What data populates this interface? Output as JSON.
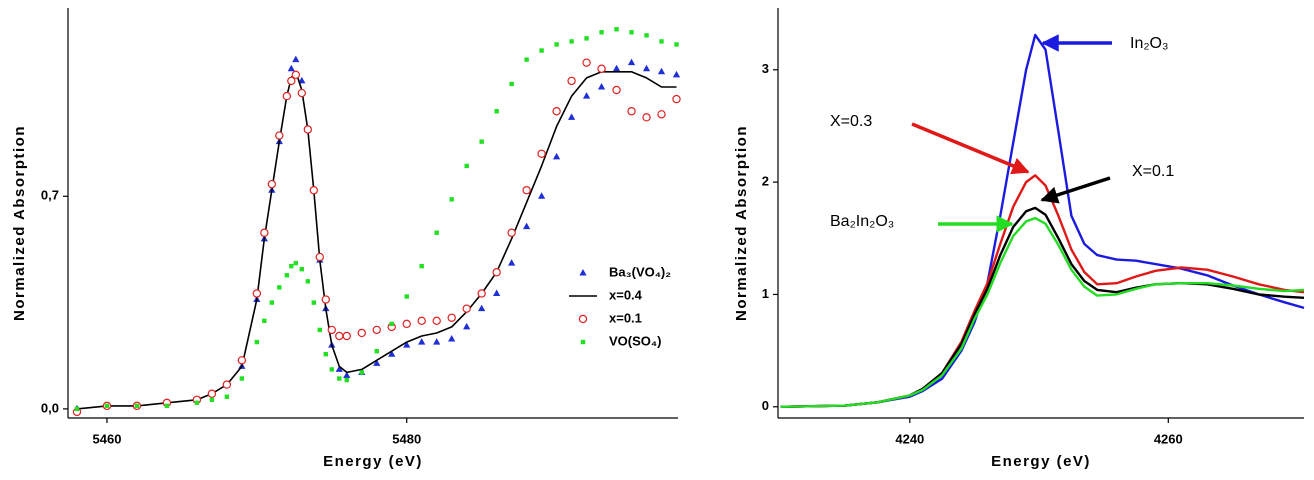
{
  "chart_data": [
    {
      "type": "line",
      "xlabel": "Energy (eV)",
      "ylabel": "Normalized Absorption",
      "xlim": [
        5457.4,
        5498.1
      ],
      "ylim": [
        -0.03,
        1.32
      ],
      "xticks": [
        5460,
        5480
      ],
      "yticks": [
        {
          "value": 0,
          "label": "0,0"
        },
        {
          "value": 0.7,
          "label": "0,7"
        }
      ],
      "legend": "right",
      "x": [
        5458,
        5460,
        5462,
        5464,
        5466,
        5467,
        5468,
        5469,
        5470,
        5470.5,
        5471,
        5471.5,
        5472,
        5472.3,
        5472.6,
        5473,
        5473.4,
        5473.8,
        5474.2,
        5474.6,
        5475,
        5475.5,
        5476,
        5477,
        5478,
        5479,
        5480,
        5481,
        5482,
        5483,
        5484,
        5485,
        5486,
        5487,
        5488,
        5489,
        5490,
        5491,
        5492,
        5493,
        5494,
        5495,
        5496,
        5497,
        5498
      ],
      "series": [
        {
          "name": "Ba₃(VO₄)₂",
          "color": "#1f2fd8",
          "marker": "triangle",
          "values": [
            0,
            0.01,
            0.01,
            0.02,
            0.03,
            0.05,
            0.08,
            0.14,
            0.36,
            0.56,
            0.72,
            0.88,
            1.03,
            1.12,
            1.15,
            1.08,
            0.92,
            0.72,
            0.49,
            0.33,
            0.21,
            0.13,
            0.11,
            0.12,
            0.15,
            0.18,
            0.21,
            0.22,
            0.22,
            0.23,
            0.27,
            0.33,
            0.38,
            0.48,
            0.6,
            0.7,
            0.83,
            0.96,
            1.03,
            1.06,
            1.12,
            1.14,
            1.12,
            1.11,
            1.1
          ]
        },
        {
          "name": "x=0.4",
          "color": "#000000",
          "marker": "none",
          "values": [
            0,
            0.01,
            0.01,
            0.02,
            0.03,
            0.05,
            0.08,
            0.14,
            0.36,
            0.56,
            0.72,
            0.88,
            1.03,
            1.09,
            1.11,
            1.05,
            0.92,
            0.72,
            0.49,
            0.33,
            0.21,
            0.14,
            0.12,
            0.13,
            0.16,
            0.19,
            0.22,
            0.24,
            0.25,
            0.27,
            0.32,
            0.38,
            0.45,
            0.56,
            0.68,
            0.8,
            0.93,
            1.03,
            1.09,
            1.11,
            1.11,
            1.11,
            1.09,
            1.06,
            1.06
          ]
        },
        {
          "name": "x=0.1",
          "color": "#e02020",
          "marker": "circle",
          "values": [
            -0.01,
            0.01,
            0.01,
            0.02,
            0.03,
            0.05,
            0.08,
            0.16,
            0.38,
            0.58,
            0.74,
            0.9,
            1.03,
            1.08,
            1.1,
            1.04,
            0.92,
            0.72,
            0.5,
            0.36,
            0.26,
            0.24,
            0.24,
            0.25,
            0.26,
            0.27,
            0.28,
            0.29,
            0.29,
            0.3,
            0.33,
            0.38,
            0.45,
            0.58,
            0.72,
            0.84,
            0.98,
            1.08,
            1.14,
            1.12,
            1.05,
            0.98,
            0.96,
            0.97,
            1.02
          ]
        },
        {
          "name": "VO(SO₄)",
          "color": "#22e022",
          "marker": "square",
          "values": [
            0,
            0.01,
            0.01,
            0.01,
            0.02,
            0.03,
            0.04,
            0.1,
            0.22,
            0.29,
            0.35,
            0.4,
            0.44,
            0.47,
            0.48,
            0.46,
            0.42,
            0.35,
            0.26,
            0.18,
            0.13,
            0.1,
            0.095,
            0.12,
            0.19,
            0.28,
            0.37,
            0.47,
            0.58,
            0.69,
            0.8,
            0.88,
            0.98,
            1.07,
            1.15,
            1.18,
            1.2,
            1.21,
            1.22,
            1.24,
            1.25,
            1.24,
            1.23,
            1.21,
            1.2
          ]
        }
      ]
    },
    {
      "type": "line",
      "xlabel": "Energy (eV)",
      "ylabel": "Normalized Absorption",
      "xlim": [
        4229.8,
        4270.5
      ],
      "ylim": [
        -0.1,
        3.55
      ],
      "xticks": [
        4240,
        4260
      ],
      "yticks": [
        0,
        1,
        2,
        3
      ],
      "x": [
        4230,
        4235,
        4237.5,
        4240,
        4241,
        4242.5,
        4244,
        4245,
        4246,
        4247,
        4248,
        4249,
        4249.7,
        4250.5,
        4251.5,
        4252.5,
        4253.5,
        4254.5,
        4256,
        4257.5,
        4259,
        4261,
        4263,
        4265,
        4267,
        4269,
        4270.5
      ],
      "series": [
        {
          "name": "In₂O₃",
          "color": "#1a1ae0",
          "marker": "none",
          "values": [
            0,
            0.01,
            0.04,
            0.09,
            0.14,
            0.25,
            0.5,
            0.75,
            1.1,
            1.7,
            2.35,
            3.0,
            3.31,
            3.18,
            2.45,
            1.7,
            1.45,
            1.35,
            1.31,
            1.3,
            1.27,
            1.23,
            1.17,
            1.08,
            1.0,
            0.93,
            0.88
          ]
        },
        {
          "name": "X=0.3",
          "color": "#e01818",
          "marker": "none",
          "values": [
            0,
            0.01,
            0.04,
            0.1,
            0.16,
            0.3,
            0.58,
            0.85,
            1.1,
            1.45,
            1.78,
            2.0,
            2.06,
            1.97,
            1.7,
            1.4,
            1.2,
            1.09,
            1.1,
            1.16,
            1.21,
            1.24,
            1.22,
            1.16,
            1.09,
            1.04,
            1.02
          ]
        },
        {
          "name": "X=0.1",
          "color": "#000000",
          "marker": "none",
          "values": [
            0,
            0.01,
            0.04,
            0.1,
            0.16,
            0.3,
            0.56,
            0.82,
            1.05,
            1.35,
            1.6,
            1.74,
            1.77,
            1.71,
            1.5,
            1.27,
            1.12,
            1.04,
            1.02,
            1.06,
            1.09,
            1.1,
            1.09,
            1.05,
            1.0,
            0.98,
            0.97
          ]
        },
        {
          "name": "Ba₂In₂O₃",
          "color": "#22dd22",
          "marker": "none",
          "values": [
            0,
            0.01,
            0.04,
            0.1,
            0.15,
            0.28,
            0.52,
            0.78,
            1.0,
            1.28,
            1.52,
            1.65,
            1.68,
            1.63,
            1.44,
            1.22,
            1.07,
            0.99,
            1.0,
            1.05,
            1.09,
            1.1,
            1.1,
            1.08,
            1.05,
            1.03,
            1.04
          ]
        }
      ]
    }
  ]
}
